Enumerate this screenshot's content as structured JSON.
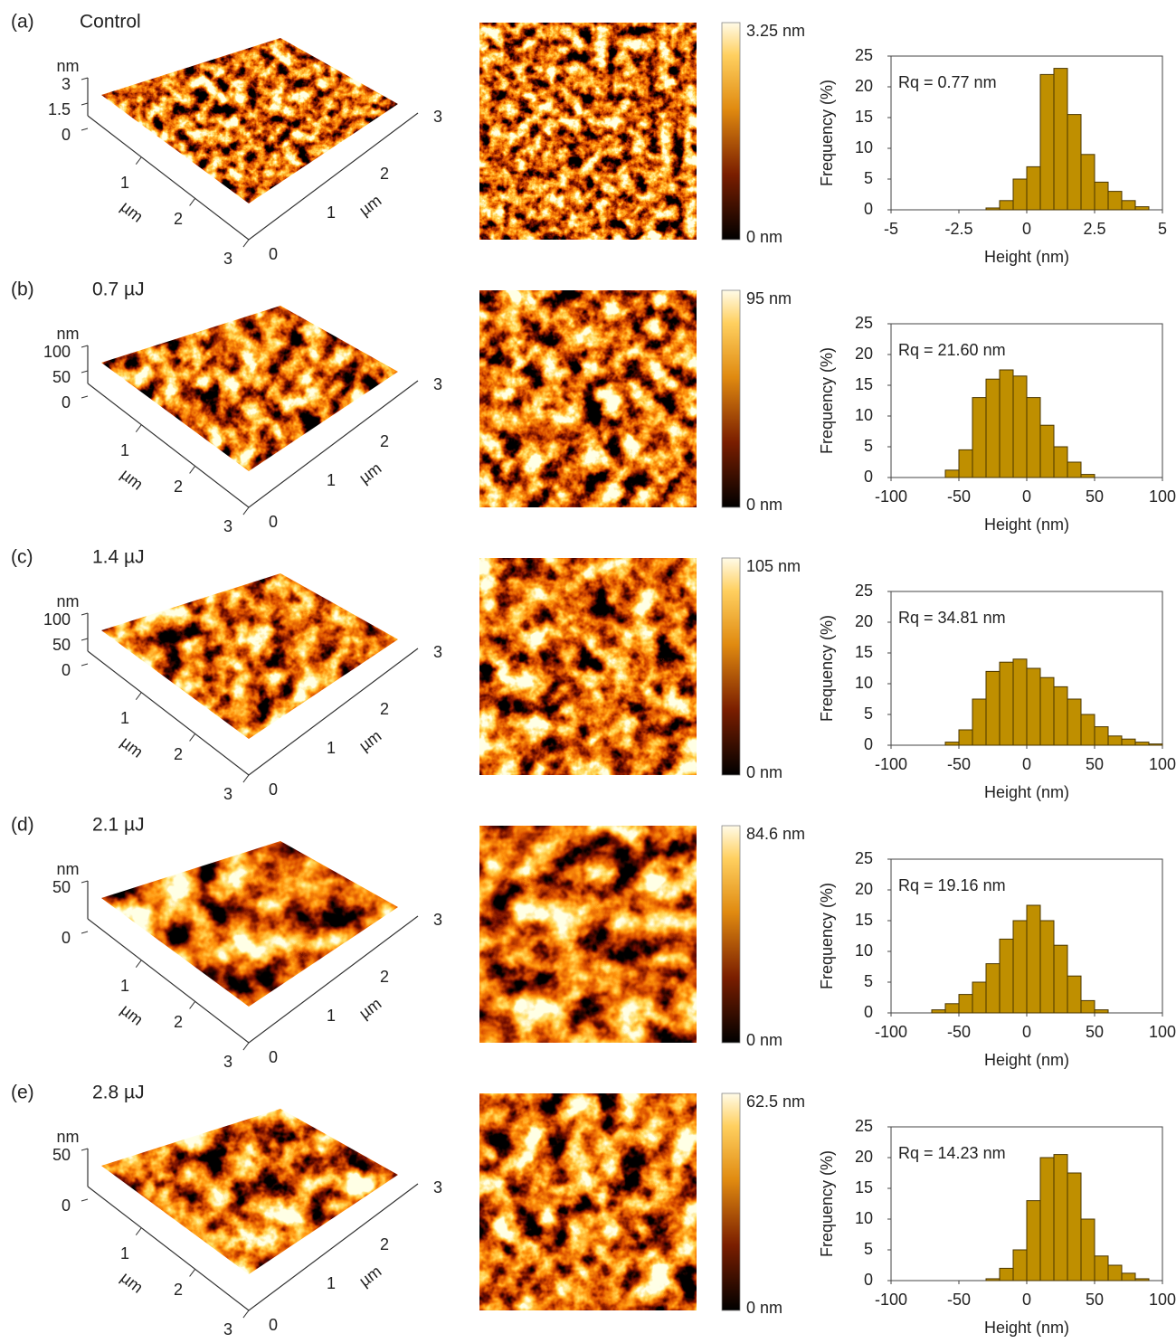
{
  "panels": [
    {
      "label": "(a)",
      "condition": "Control",
      "z_unit": "nm",
      "z_ticks": [
        "3",
        "1.5",
        "0"
      ],
      "axis_unit": "µm",
      "left_ticks": [
        "1",
        "2",
        "3"
      ],
      "right_ticks": [
        "0",
        "1",
        "2",
        "3"
      ],
      "colorbar_max": "3.25 nm",
      "colorbar_min": "0 nm"
    },
    {
      "label": "(b)",
      "condition": "0.7 µJ",
      "z_unit": "nm",
      "z_ticks": [
        "100",
        "50",
        "0"
      ],
      "axis_unit": "µm",
      "left_ticks": [
        "1",
        "2",
        "3"
      ],
      "right_ticks": [
        "0",
        "1",
        "2",
        "3"
      ],
      "colorbar_max": "95 nm",
      "colorbar_min": "0 nm"
    },
    {
      "label": "(c)",
      "condition": "1.4 µJ",
      "z_unit": "nm",
      "z_ticks": [
        "100",
        "50",
        "0"
      ],
      "axis_unit": "µm",
      "left_ticks": [
        "1",
        "2",
        "3"
      ],
      "right_ticks": [
        "0",
        "1",
        "2",
        "3"
      ],
      "colorbar_max": "105 nm",
      "colorbar_min": "0 nm"
    },
    {
      "label": "(d)",
      "condition": "2.1 µJ",
      "z_unit": "nm",
      "z_ticks": [
        "50",
        "0"
      ],
      "axis_unit": "µm",
      "left_ticks": [
        "1",
        "2",
        "3"
      ],
      "right_ticks": [
        "0",
        "1",
        "2",
        "3"
      ],
      "colorbar_max": "84.6 nm",
      "colorbar_min": "0 nm"
    },
    {
      "label": "(e)",
      "condition": "2.8 µJ",
      "z_unit": "nm",
      "z_ticks": [
        "50",
        "0"
      ],
      "axis_unit": "µm",
      "left_ticks": [
        "1",
        "2",
        "3"
      ],
      "right_ticks": [
        "0",
        "1",
        "2",
        "3"
      ],
      "colorbar_max": "62.5 nm",
      "colorbar_min": "0 nm"
    }
  ],
  "chart_data": [
    {
      "type": "histogram",
      "annotation": "Rq = 0.77 nm",
      "xlabel": "Height (nm)",
      "ylabel": "Frequency (%)",
      "color": "#bf8f00",
      "bins": [
        -1.5,
        -1,
        -0.5,
        0,
        0.5,
        1,
        1.5,
        2,
        2.5,
        3,
        3.5,
        4,
        4.5
      ],
      "values": [
        0.3,
        1.5,
        5,
        7,
        22,
        23,
        15.5,
        9,
        4.5,
        3,
        1.5,
        0.5
      ],
      "xlim": [
        -5,
        5
      ],
      "xticks": [
        -5,
        -2.5,
        0,
        2.5,
        5
      ],
      "ylim": [
        0,
        25
      ],
      "yticks": [
        0,
        5,
        10,
        15,
        20,
        25
      ]
    },
    {
      "type": "histogram",
      "annotation": "Rq = 21.60 nm",
      "xlabel": "Height (nm)",
      "ylabel": "Frequency (%)",
      "color": "#bf8f00",
      "bins": [
        -60,
        -50,
        -40,
        -30,
        -20,
        -10,
        0,
        10,
        20,
        30,
        40,
        50
      ],
      "values": [
        1.2,
        4.5,
        13,
        16,
        17.5,
        16.5,
        13,
        8.5,
        5,
        2.5,
        0.5
      ],
      "xlim": [
        -100,
        100
      ],
      "xticks": [
        -100,
        -50,
        0,
        50,
        100
      ],
      "ylim": [
        0,
        25
      ],
      "yticks": [
        0,
        5,
        10,
        15,
        20,
        25
      ]
    },
    {
      "type": "histogram",
      "annotation": "Rq = 34.81 nm",
      "xlabel": "Height (nm)",
      "ylabel": "Frequency (%)",
      "color": "#bf8f00",
      "bins": [
        -60,
        -50,
        -40,
        -30,
        -20,
        -10,
        0,
        10,
        20,
        30,
        40,
        50,
        60,
        70,
        80,
        90,
        100
      ],
      "values": [
        0.5,
        2.5,
        7.5,
        12,
        13.5,
        14,
        12.5,
        11,
        9.5,
        7.5,
        5,
        3,
        1.5,
        1,
        0.5,
        0.2
      ],
      "xlim": [
        -100,
        100
      ],
      "xticks": [
        -100,
        -50,
        0,
        50,
        100
      ],
      "ylim": [
        0,
        25
      ],
      "yticks": [
        0,
        5,
        10,
        15,
        20,
        25
      ]
    },
    {
      "type": "histogram",
      "annotation": "Rq = 19.16 nm",
      "xlabel": "Height (nm)",
      "ylabel": "Frequency (%)",
      "color": "#bf8f00",
      "bins": [
        -70,
        -60,
        -50,
        -40,
        -30,
        -20,
        -10,
        0,
        10,
        20,
        30,
        40,
        50,
        60
      ],
      "values": [
        0.5,
        1.5,
        3,
        5,
        8,
        12,
        15,
        17.5,
        15,
        11,
        6,
        2,
        0.5
      ],
      "xlim": [
        -100,
        100
      ],
      "xticks": [
        -100,
        -50,
        0,
        50,
        100
      ],
      "ylim": [
        0,
        25
      ],
      "yticks": [
        0,
        5,
        10,
        15,
        20,
        25
      ]
    },
    {
      "type": "histogram",
      "annotation": "Rq = 14.23 nm",
      "xlabel": "Height (nm)",
      "ylabel": "Frequency (%)",
      "color": "#bf8f00",
      "bins": [
        -30,
        -20,
        -10,
        0,
        10,
        20,
        30,
        40,
        50,
        60,
        70,
        80,
        90
      ],
      "values": [
        0.3,
        2,
        5,
        13,
        20,
        20.5,
        17.5,
        10,
        4,
        2.5,
        1.2,
        0.3
      ],
      "xlim": [
        -100,
        100
      ],
      "xticks": [
        -100,
        -50,
        0,
        50,
        100
      ],
      "ylim": [
        0,
        25
      ],
      "yticks": [
        0,
        5,
        10,
        15,
        20,
        25
      ]
    }
  ]
}
